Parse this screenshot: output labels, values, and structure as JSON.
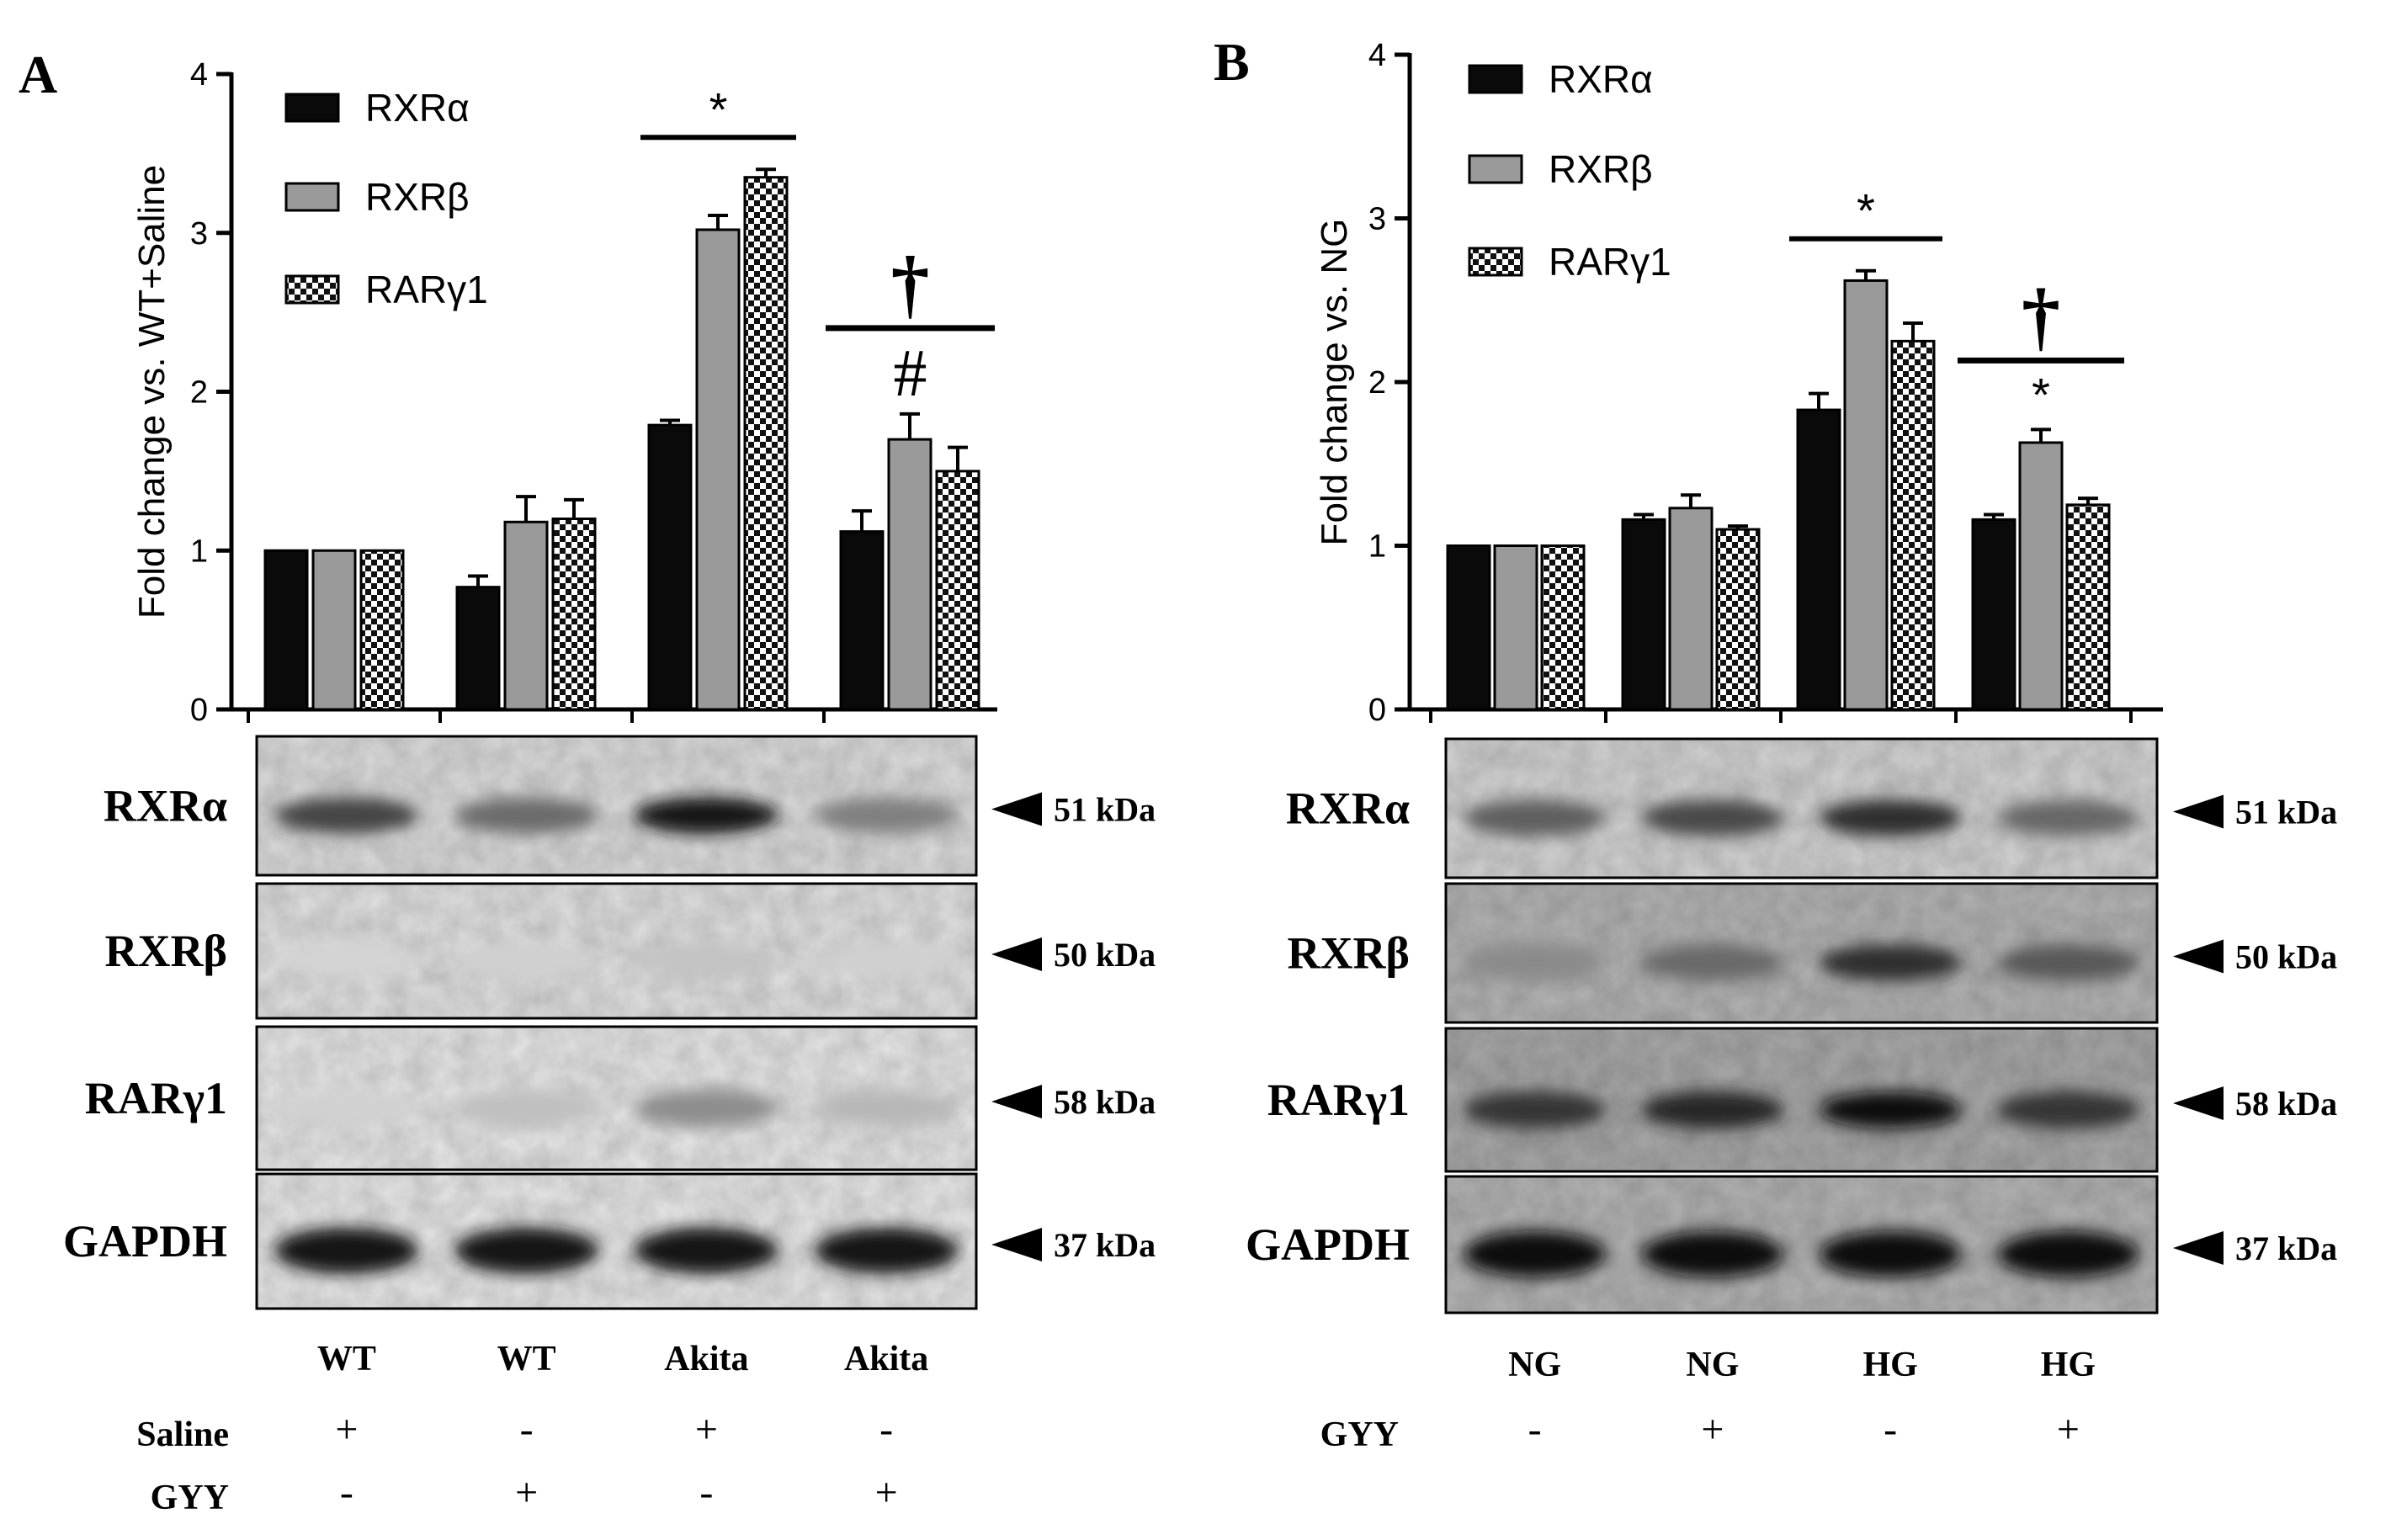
{
  "chart_data": [
    {
      "type": "bar",
      "panel": "A",
      "ylabel": "Fold change vs. WT+Saline",
      "ylim": [
        0,
        4
      ],
      "yticks": [
        "0",
        "1",
        "2",
        "3",
        "4"
      ],
      "legend": "top-left",
      "series": [
        {
          "name": "RXRα",
          "pattern": "solid",
          "values": [
            1.0,
            0.77,
            1.79,
            1.12
          ],
          "errors": [
            0.0,
            0.07,
            0.03,
            0.13
          ]
        },
        {
          "name": "RXRβ",
          "pattern": "gray",
          "values": [
            1.0,
            1.18,
            3.02,
            1.7
          ],
          "errors": [
            0.0,
            0.16,
            0.09,
            0.16
          ]
        },
        {
          "name": "RARγ1",
          "pattern": "checker",
          "values": [
            1.0,
            1.2,
            3.35,
            1.5
          ],
          "errors": [
            0.0,
            0.12,
            0.05,
            0.15
          ]
        }
      ],
      "significance": [
        {
          "group": 2,
          "symbols": [
            "*"
          ]
        },
        {
          "group": 3,
          "symbols": [
            "†",
            "#"
          ]
        }
      ],
      "blots": [
        {
          "label": "RXRα",
          "kda": "51 kDa",
          "intensity": [
            0.75,
            0.55,
            1.0,
            0.45
          ],
          "bg": 0.86
        },
        {
          "label": "RXRβ",
          "kda": "50 kDa",
          "intensity": [
            0.06,
            0.08,
            0.14,
            0.08
          ],
          "bg": 0.88
        },
        {
          "label": "RARγ1",
          "kda": "58 kDa",
          "intensity": [
            0.1,
            0.18,
            0.42,
            0.22
          ],
          "bg": 0.9
        },
        {
          "label": "GAPDH",
          "kda": "37 kDa",
          "intensity": [
            1.0,
            1.0,
            1.0,
            1.0
          ],
          "bg": 0.9
        }
      ],
      "groups": [
        "WT",
        "WT",
        "Akita",
        "Akita"
      ],
      "conditions": [
        {
          "label": "Saline",
          "signs": [
            "+",
            "-",
            "+",
            "-"
          ]
        },
        {
          "label": "GYY",
          "signs": [
            "-",
            "+",
            "-",
            "+"
          ]
        }
      ]
    },
    {
      "type": "bar",
      "panel": "B",
      "ylabel": "Fold change vs. NG",
      "ylim": [
        0,
        4
      ],
      "yticks": [
        "0",
        "1",
        "2",
        "3",
        "4"
      ],
      "legend": "top-left",
      "series": [
        {
          "name": "RXRα",
          "pattern": "solid",
          "values": [
            1.0,
            1.16,
            1.83,
            1.16
          ],
          "errors": [
            0.0,
            0.03,
            0.1,
            0.03
          ]
        },
        {
          "name": "RXRβ",
          "pattern": "gray",
          "values": [
            1.0,
            1.23,
            2.62,
            1.63
          ],
          "errors": [
            0.0,
            0.08,
            0.06,
            0.08
          ]
        },
        {
          "name": "RARγ1",
          "pattern": "checker",
          "values": [
            1.0,
            1.1,
            2.25,
            1.25
          ],
          "errors": [
            0.0,
            0.02,
            0.11,
            0.04
          ]
        }
      ],
      "significance": [
        {
          "group": 2,
          "symbols": [
            "*"
          ]
        },
        {
          "group": 3,
          "symbols": [
            "†",
            "*"
          ]
        }
      ],
      "blots": [
        {
          "label": "RXRα",
          "kda": "51 kDa",
          "intensity": [
            0.6,
            0.7,
            0.85,
            0.55
          ],
          "bg": 0.82
        },
        {
          "label": "RXRβ",
          "kda": "50 kDa",
          "intensity": [
            0.25,
            0.45,
            0.8,
            0.55
          ],
          "bg": 0.7
        },
        {
          "label": "RARγ1",
          "kda": "58 kDa",
          "intensity": [
            0.75,
            0.85,
            1.0,
            0.75
          ],
          "bg": 0.66
        },
        {
          "label": "GAPDH",
          "kda": "37 kDa",
          "intensity": [
            1.0,
            1.0,
            1.0,
            1.0
          ],
          "bg": 0.7
        }
      ],
      "groups": [
        "NG",
        "NG",
        "HG",
        "HG"
      ],
      "conditions": [
        {
          "label": "GYY",
          "signs": [
            "-",
            "+",
            "-",
            "+"
          ]
        }
      ]
    }
  ]
}
